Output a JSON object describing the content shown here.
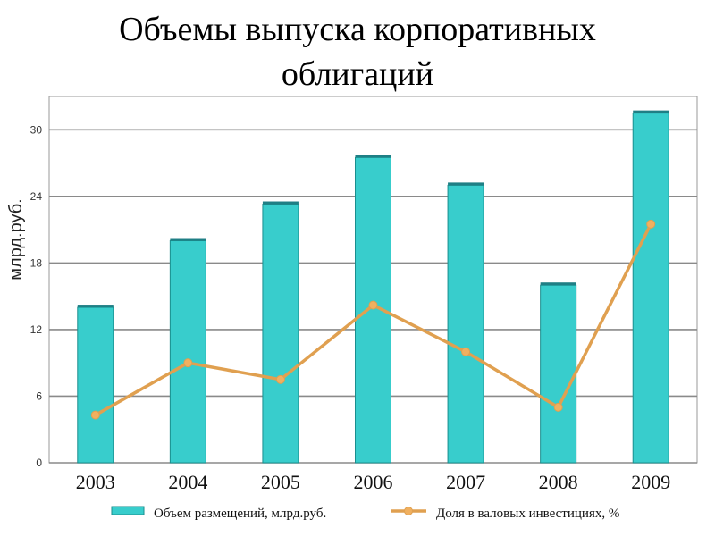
{
  "title": {
    "line1": "Объемы выпуска корпоративных",
    "line2": "облигаций"
  },
  "chart_data": {
    "type": "bar",
    "categories": [
      "2003",
      "2004",
      "2005",
      "2006",
      "2007",
      "2008",
      "2009"
    ],
    "ylabel": "млрд.руб.",
    "ylim": [
      0,
      33
    ],
    "yticks": [
      0,
      6,
      12,
      18,
      24,
      30
    ],
    "grid": true,
    "legend_position": "bottom",
    "series": [
      {
        "name": "Объем размещений, млрд.руб.",
        "type": "bar",
        "color": "#38CDCC",
        "values": [
          14,
          20,
          23.3,
          27.5,
          25,
          16,
          31.5
        ]
      },
      {
        "name": "Доля в валовых инвестициях, %",
        "type": "line",
        "color": "#E0A050",
        "values": [
          4.3,
          9,
          7.5,
          14.2,
          10,
          5,
          21.5
        ]
      }
    ]
  }
}
